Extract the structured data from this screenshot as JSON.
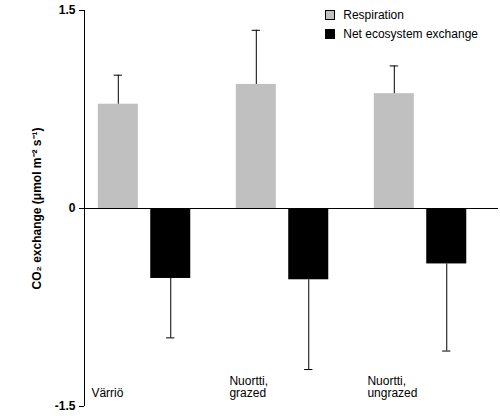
{
  "chart_data": {
    "type": "bar",
    "categories": [
      "Värriö",
      "Nuortti, grazed",
      "Nuortti, ungrazed"
    ],
    "series": [
      {
        "name": "Respiration",
        "color": "#c0c0c0",
        "values": [
          0.79,
          0.94,
          0.87
        ],
        "errors": [
          0.22,
          0.41,
          0.21
        ]
      },
      {
        "name": "Net ecosystem exchange",
        "color": "#000000",
        "values": [
          -0.53,
          -0.54,
          -0.42
        ],
        "errors": [
          0.45,
          0.68,
          0.66
        ]
      }
    ],
    "ylabel": "CO₂ exchange (μmol m⁻² s⁻¹)",
    "ylim": [
      -1.5,
      1.5
    ],
    "yticks": [
      -1.5,
      0,
      1.5
    ],
    "legend": "top-right",
    "grid": false
  }
}
